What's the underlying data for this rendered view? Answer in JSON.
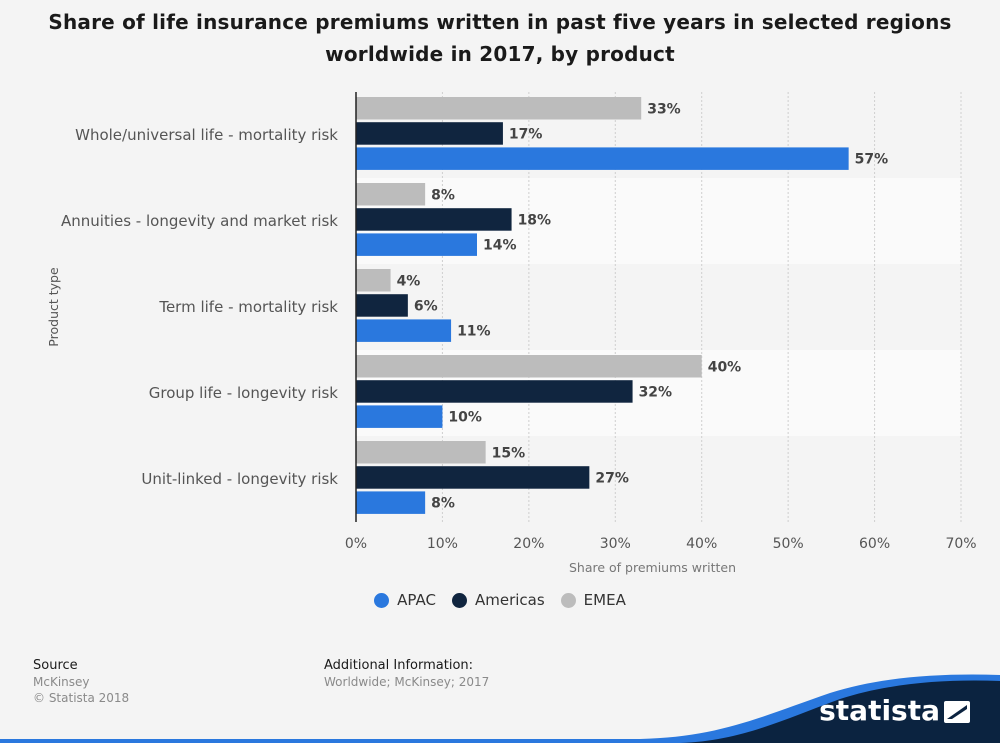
{
  "title_lines": [
    "Share of life insurance premiums written in past five years in selected regions",
    "worldwide in 2017, by product"
  ],
  "colors": {
    "APAC": "#2a78de",
    "Americas": "#10253f",
    "EMEA": "#bcbcbc"
  },
  "chart_data": {
    "type": "bar",
    "orientation": "horizontal",
    "categories": [
      "Whole/universal life - mortality risk",
      "Annuities - longevity and market risk",
      "Term life - mortality risk",
      "Group life - longevity risk",
      "Unit-linked - longevity risk"
    ],
    "series": [
      {
        "name": "EMEA",
        "values": [
          33,
          8,
          4,
          40,
          15
        ]
      },
      {
        "name": "Americas",
        "values": [
          17,
          18,
          6,
          32,
          27
        ]
      },
      {
        "name": "APAC",
        "values": [
          57,
          14,
          11,
          10,
          8
        ]
      }
    ],
    "xlabel": "Share of premiums written",
    "ylabel": "Product type",
    "xlim": [
      0,
      70
    ],
    "ticks": [
      "0%",
      "10%",
      "20%",
      "30%",
      "40%",
      "50%",
      "60%",
      "70%"
    ],
    "value_suffix": "%",
    "grid": true,
    "legend_position": "bottom",
    "legend": [
      "APAC",
      "Americas",
      "EMEA"
    ]
  },
  "footer": {
    "source_heading": "Source",
    "source_lines": [
      "McKinsey",
      "© Statista 2018"
    ],
    "info_heading": "Additional Information:",
    "info_text": "Worldwide; McKinsey; 2017"
  },
  "brand": {
    "name": "statista",
    "icon": "statista-logo-icon"
  }
}
